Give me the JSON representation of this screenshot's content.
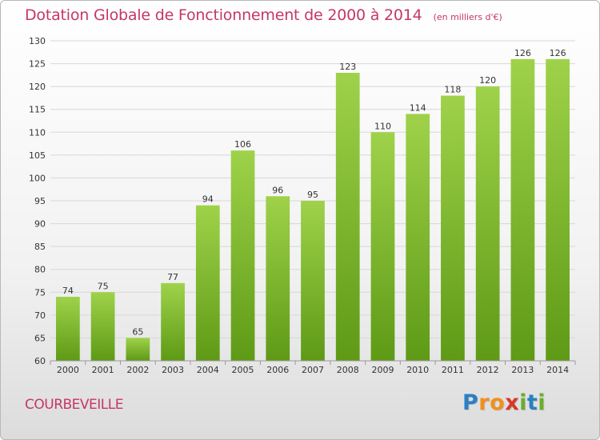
{
  "chart_data": {
    "type": "bar",
    "title": "Dotation Globale de Fonctionnement de 2000 à 2014",
    "subtitle": "(en milliers d'€)",
    "categories": [
      "2000",
      "2001",
      "2002",
      "2003",
      "2004",
      "2005",
      "2006",
      "2007",
      "2008",
      "2009",
      "2010",
      "2011",
      "2012",
      "2013",
      "2014"
    ],
    "values": [
      74,
      75,
      65,
      77,
      94,
      106,
      96,
      95,
      123,
      110,
      114,
      118,
      120,
      126,
      126
    ],
    "xlabel": "",
    "ylabel": "",
    "ylim": [
      60,
      130
    ],
    "yticks": [
      60,
      65,
      70,
      75,
      80,
      85,
      90,
      95,
      100,
      105,
      110,
      115,
      120,
      125,
      130
    ],
    "grid": true,
    "bar_color": "#7cb82a"
  },
  "commune": "COURBEVEILLE",
  "logo": {
    "letters": [
      "P",
      "r",
      "o",
      "x",
      "i",
      "t",
      "i"
    ],
    "colors": [
      "#2b7fc4",
      "#f0901d",
      "#f0901d",
      "#d63a2a",
      "#6aae2a",
      "#2b7fc4",
      "#6aae2a"
    ]
  }
}
